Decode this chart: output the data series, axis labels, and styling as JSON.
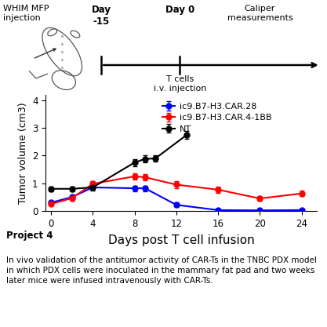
{
  "blue_x": [
    0,
    2,
    4,
    8,
    9,
    12,
    16,
    20,
    24
  ],
  "blue_y": [
    0.3,
    0.5,
    0.85,
    0.82,
    0.82,
    0.22,
    0.03,
    0.02,
    0.03
  ],
  "blue_err": [
    0.05,
    0.08,
    0.08,
    0.1,
    0.1,
    0.08,
    0.02,
    0.02,
    0.02
  ],
  "red_x": [
    0,
    2,
    4,
    8,
    9,
    12,
    16,
    20,
    24
  ],
  "red_y": [
    0.25,
    0.46,
    0.98,
    1.25,
    1.22,
    0.95,
    0.77,
    0.45,
    0.63
  ],
  "red_err": [
    0.05,
    0.08,
    0.1,
    0.12,
    0.12,
    0.12,
    0.12,
    0.08,
    0.1
  ],
  "black_x": [
    0,
    2,
    4,
    8,
    9,
    10,
    13
  ],
  "black_y": [
    0.8,
    0.8,
    0.85,
    1.75,
    1.88,
    1.9,
    2.75
  ],
  "black_err": [
    0.08,
    0.08,
    0.1,
    0.12,
    0.12,
    0.12,
    0.15
  ],
  "blue_color": "#0000ff",
  "red_color": "#ff0000",
  "black_color": "#000000",
  "xlabel": "Days post T cell infusion",
  "ylabel": "Tumor volume (cm3)",
  "ylim": [
    0,
    4.2
  ],
  "xlim": [
    -0.5,
    25.5
  ],
  "xticks": [
    0,
    4,
    8,
    12,
    16,
    20,
    24
  ],
  "yticks": [
    0,
    1,
    2,
    3,
    4
  ],
  "legend_labels": [
    "ic9.B7-H3.CAR.28",
    "ic9.B7-H3.CAR.4-1BB",
    "NT"
  ],
  "project_title": "Project 4",
  "project_text": "In vivo validation of the antitumor activity of CAR-Ts in the TNBC PDX model\nin which PDX cells were inoculated in the mammary fat pad and two weeks\nlater mice were infused intravenously with CAR-Ts.",
  "timeline_text_whim": "WHIM MFP\ninjection",
  "timeline_text_day15": "Day\n-15",
  "timeline_text_day0": "Day 0",
  "timeline_text_tcells": "T cells\ni.v. injection",
  "timeline_text_caliper": "Caliper\nmeasurements",
  "fig_width": 4.17,
  "fig_height": 4.17,
  "dpi": 100
}
